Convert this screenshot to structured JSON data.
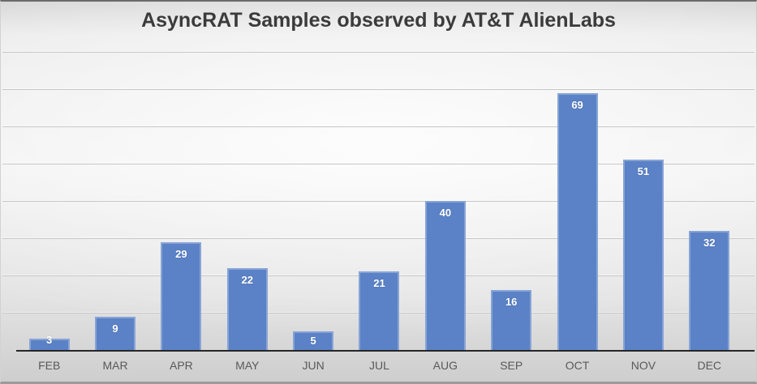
{
  "chart_data": {
    "type": "bar",
    "title": "AsyncRAT Samples observed by AT&T AlienLabs",
    "categories": [
      "FEB",
      "MAR",
      "APR",
      "MAY",
      "JUN",
      "JUL",
      "AUG",
      "SEP",
      "OCT",
      "NOV",
      "DEC"
    ],
    "values": [
      3,
      9,
      29,
      22,
      5,
      21,
      40,
      16,
      69,
      51,
      32
    ],
    "xlabel": "",
    "ylabel": "",
    "ylim": [
      0,
      80
    ],
    "gridline_interval": 10,
    "grid": true,
    "legend": false,
    "data_labels": "inside-end"
  },
  "colors": {
    "bar": "#5B82C6",
    "bar_soft_edge": "#8FA6D6",
    "title_text": "#3B3B3B",
    "axis_line": "#262626",
    "gridline": "#C6C6C6",
    "category_label": "#595959",
    "value_label": "#FFFFFF",
    "background_light": "#F4F4F4",
    "background_dark": "#CFCFCF"
  }
}
